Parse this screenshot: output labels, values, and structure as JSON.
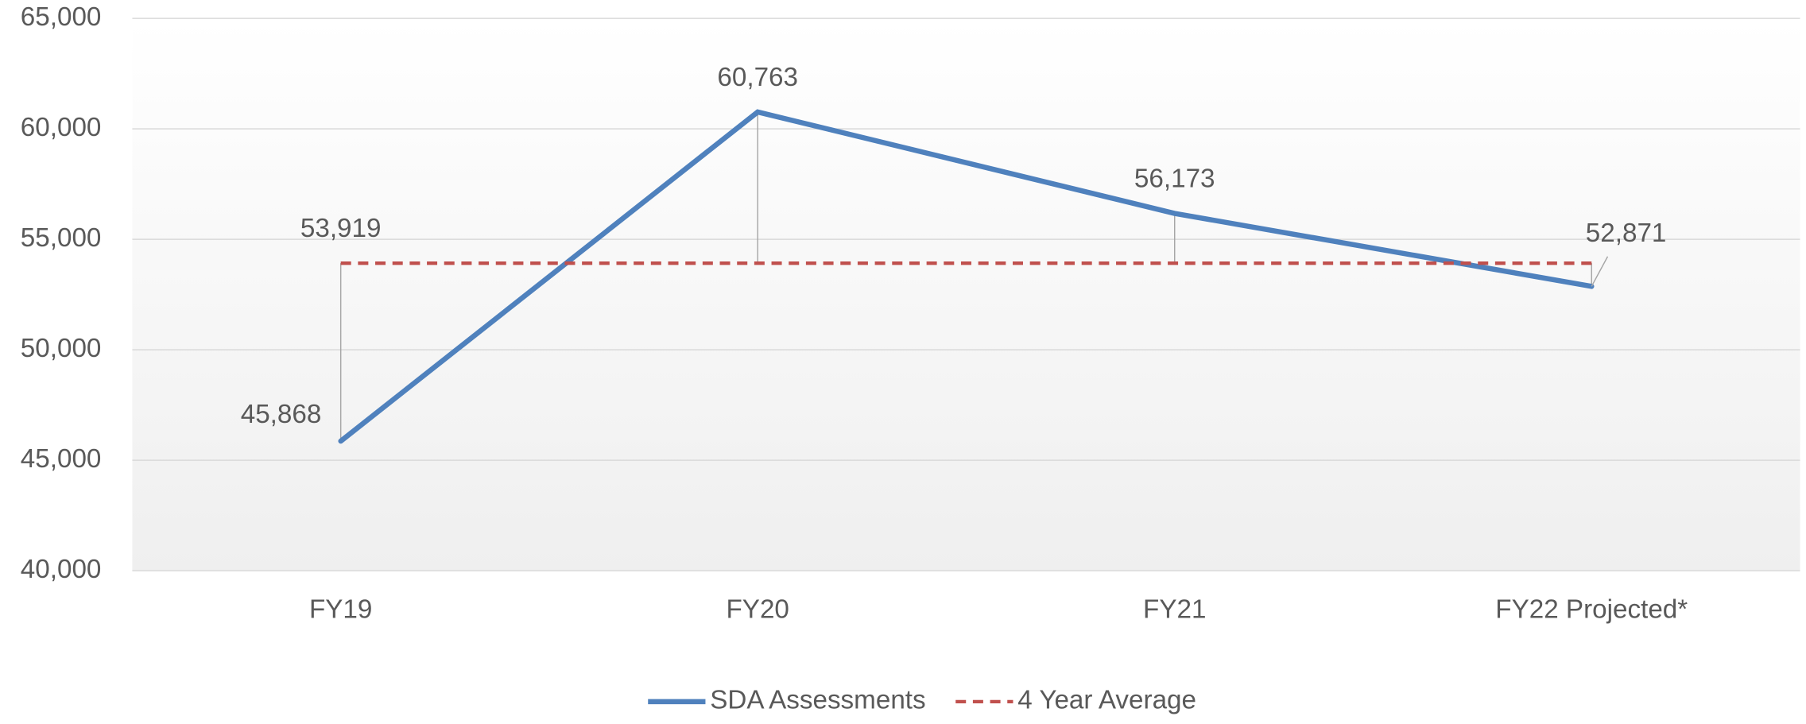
{
  "chart_data": {
    "type": "line",
    "categories": [
      "FY19",
      "FY20",
      "FY21",
      "FY22 Projected*"
    ],
    "series": [
      {
        "name": "SDA Assessments",
        "color": "#4f81bd",
        "values": [
          45868,
          60763,
          56173,
          52871
        ],
        "value_labels": [
          "45,868",
          "60,763",
          "56,173",
          "52,871"
        ]
      },
      {
        "name": "4 Year Average",
        "color": "#c0504d",
        "dashed": true,
        "values": [
          53919,
          53919,
          53919,
          53919
        ],
        "value_labels": [
          "53,919",
          null,
          null,
          null
        ]
      }
    ],
    "ylim": [
      40000,
      65000
    ],
    "yticks": [
      {
        "value": 40000,
        "label": "40,000"
      },
      {
        "value": 45000,
        "label": "45,000"
      },
      {
        "value": 50000,
        "label": "50,000"
      },
      {
        "value": 55000,
        "label": "55,000"
      },
      {
        "value": 60000,
        "label": "60,000"
      },
      {
        "value": 65000,
        "label": "65,000"
      }
    ],
    "grid": true,
    "legend": "bottom"
  }
}
